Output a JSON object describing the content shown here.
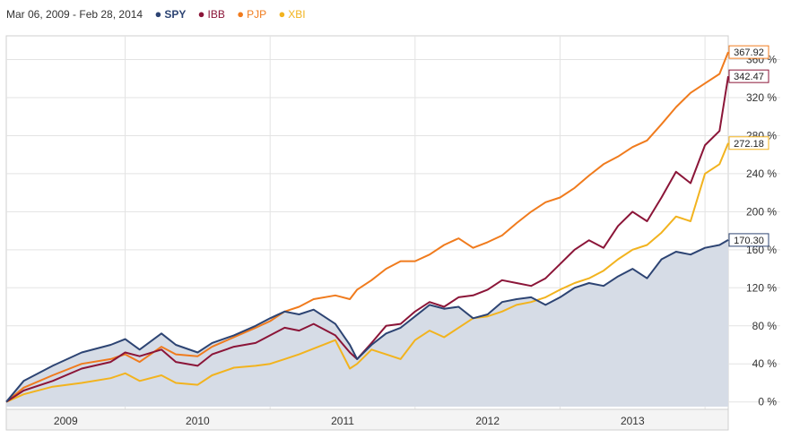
{
  "header": {
    "date_range": "Mar 06, 2009 - Feb 28, 2014"
  },
  "chart_data": {
    "type": "line",
    "x": [
      2009.18,
      2009.3,
      2009.5,
      2009.7,
      2009.9,
      2010.0,
      2010.1,
      2010.25,
      2010.35,
      2010.5,
      2010.6,
      2010.75,
      2010.9,
      2011.0,
      2011.1,
      2011.2,
      2011.3,
      2011.45,
      2011.55,
      2011.6,
      2011.7,
      2011.8,
      2011.9,
      2012.0,
      2012.1,
      2012.2,
      2012.3,
      2012.4,
      2012.5,
      2012.6,
      2012.7,
      2012.8,
      2012.9,
      2013.0,
      2013.1,
      2013.2,
      2013.3,
      2013.4,
      2013.5,
      2013.6,
      2013.7,
      2013.8,
      2013.9,
      2014.0,
      2014.1,
      2014.16
    ],
    "series": [
      {
        "name": "SPY",
        "color": "#2d4473",
        "area": true,
        "last_label": "170.30",
        "values": [
          0,
          22,
          38,
          52,
          60,
          66,
          55,
          72,
          60,
          52,
          62,
          70,
          80,
          88,
          95,
          92,
          97,
          82,
          60,
          45,
          60,
          72,
          78,
          90,
          102,
          98,
          100,
          88,
          92,
          105,
          108,
          110,
          102,
          110,
          120,
          125,
          122,
          132,
          140,
          130,
          150,
          158,
          155,
          162,
          165,
          170.3
        ]
      },
      {
        "name": "IBB",
        "color": "#8b1538",
        "area": false,
        "last_label": "342.47",
        "values": [
          0,
          12,
          22,
          35,
          42,
          52,
          48,
          55,
          42,
          38,
          50,
          58,
          62,
          70,
          78,
          75,
          82,
          70,
          52,
          45,
          62,
          80,
          82,
          95,
          105,
          100,
          110,
          112,
          118,
          128,
          125,
          122,
          130,
          145,
          160,
          170,
          162,
          185,
          200,
          190,
          215,
          242,
          230,
          270,
          285,
          342.47
        ]
      },
      {
        "name": "PJP",
        "color": "#f07b1d",
        "area": false,
        "last_label": "367.92",
        "values": [
          0,
          15,
          28,
          40,
          45,
          50,
          42,
          58,
          50,
          48,
          58,
          68,
          78,
          85,
          95,
          100,
          108,
          112,
          108,
          118,
          128,
          140,
          148,
          148,
          155,
          165,
          172,
          162,
          168,
          175,
          188,
          200,
          210,
          215,
          225,
          238,
          250,
          258,
          268,
          275,
          292,
          310,
          325,
          335,
          345,
          367.92
        ]
      },
      {
        "name": "XBI",
        "color": "#f2b31e",
        "area": false,
        "last_label": "272.18",
        "values": [
          0,
          8,
          16,
          20,
          25,
          30,
          22,
          28,
          20,
          18,
          28,
          36,
          38,
          40,
          45,
          50,
          56,
          65,
          35,
          40,
          55,
          50,
          45,
          65,
          75,
          68,
          78,
          88,
          90,
          95,
          102,
          105,
          110,
          118,
          125,
          130,
          138,
          150,
          160,
          165,
          178,
          195,
          190,
          240,
          250,
          272.18
        ]
      }
    ],
    "y_ticks": [
      "0 %",
      "40 %",
      "80 %",
      "120 %",
      "160 %",
      "200 %",
      "240 %",
      "280 %",
      "320 %",
      "360 %"
    ],
    "y_tick_values": [
      0,
      40,
      80,
      120,
      160,
      200,
      240,
      280,
      320,
      360
    ],
    "ylim": [
      -5,
      385
    ],
    "x_year_labels": [
      "2009",
      "2010",
      "2011",
      "2012",
      "2013"
    ],
    "xlim": [
      2009.18,
      2014.16
    ],
    "grid": true,
    "legend": "top-left"
  }
}
